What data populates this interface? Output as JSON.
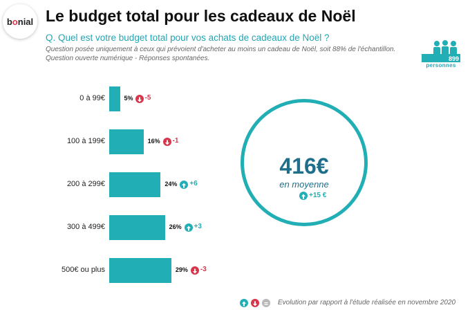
{
  "header": {
    "logo_prefix": "b",
    "logo_o": "o",
    "logo_suffix": "nial",
    "title": "Le budget total pour les cadeaux de Noël",
    "question": "Q. Quel est votre budget total pour vos achats de cadeaux de Noël ?",
    "note1": "Question posée uniquement à ceux qui prévoient d'acheter au moins un cadeau de Noël, soit 88% de l'échantillon.",
    "note2": "Question ouverte numérique - Réponses spontanées."
  },
  "sample": {
    "count": "899",
    "label": "personnes"
  },
  "chart_data": {
    "type": "bar",
    "orientation": "horizontal",
    "categories": [
      "0 à 99€",
      "100 à 199€",
      "200 à 299€",
      "300 à 499€",
      "500€ ou plus"
    ],
    "values": [
      5,
      16,
      24,
      26,
      29
    ],
    "value_labels": [
      "5%",
      "16%",
      "24%",
      "26%",
      "29%"
    ],
    "changes": [
      {
        "direction": "down",
        "label": "-5"
      },
      {
        "direction": "down",
        "label": "-1"
      },
      {
        "direction": "up",
        "label": "+6"
      },
      {
        "direction": "up",
        "label": "+3"
      },
      {
        "direction": "down",
        "label": "-3"
      }
    ],
    "color": "#22aeb5"
  },
  "average": {
    "value": "416€",
    "label": "en moyenne",
    "change": {
      "direction": "up",
      "label": "+15 €"
    }
  },
  "legend": {
    "note": "Evolution par rapport à l'étude réalisée en novembre 2020",
    "items": [
      "up-arrow-icon",
      "down-arrow-icon",
      "equal-icon"
    ]
  },
  "colors": {
    "accent": "#22aeb5",
    "down": "#d6374d",
    "dark_blue": "#1f6f8b"
  }
}
